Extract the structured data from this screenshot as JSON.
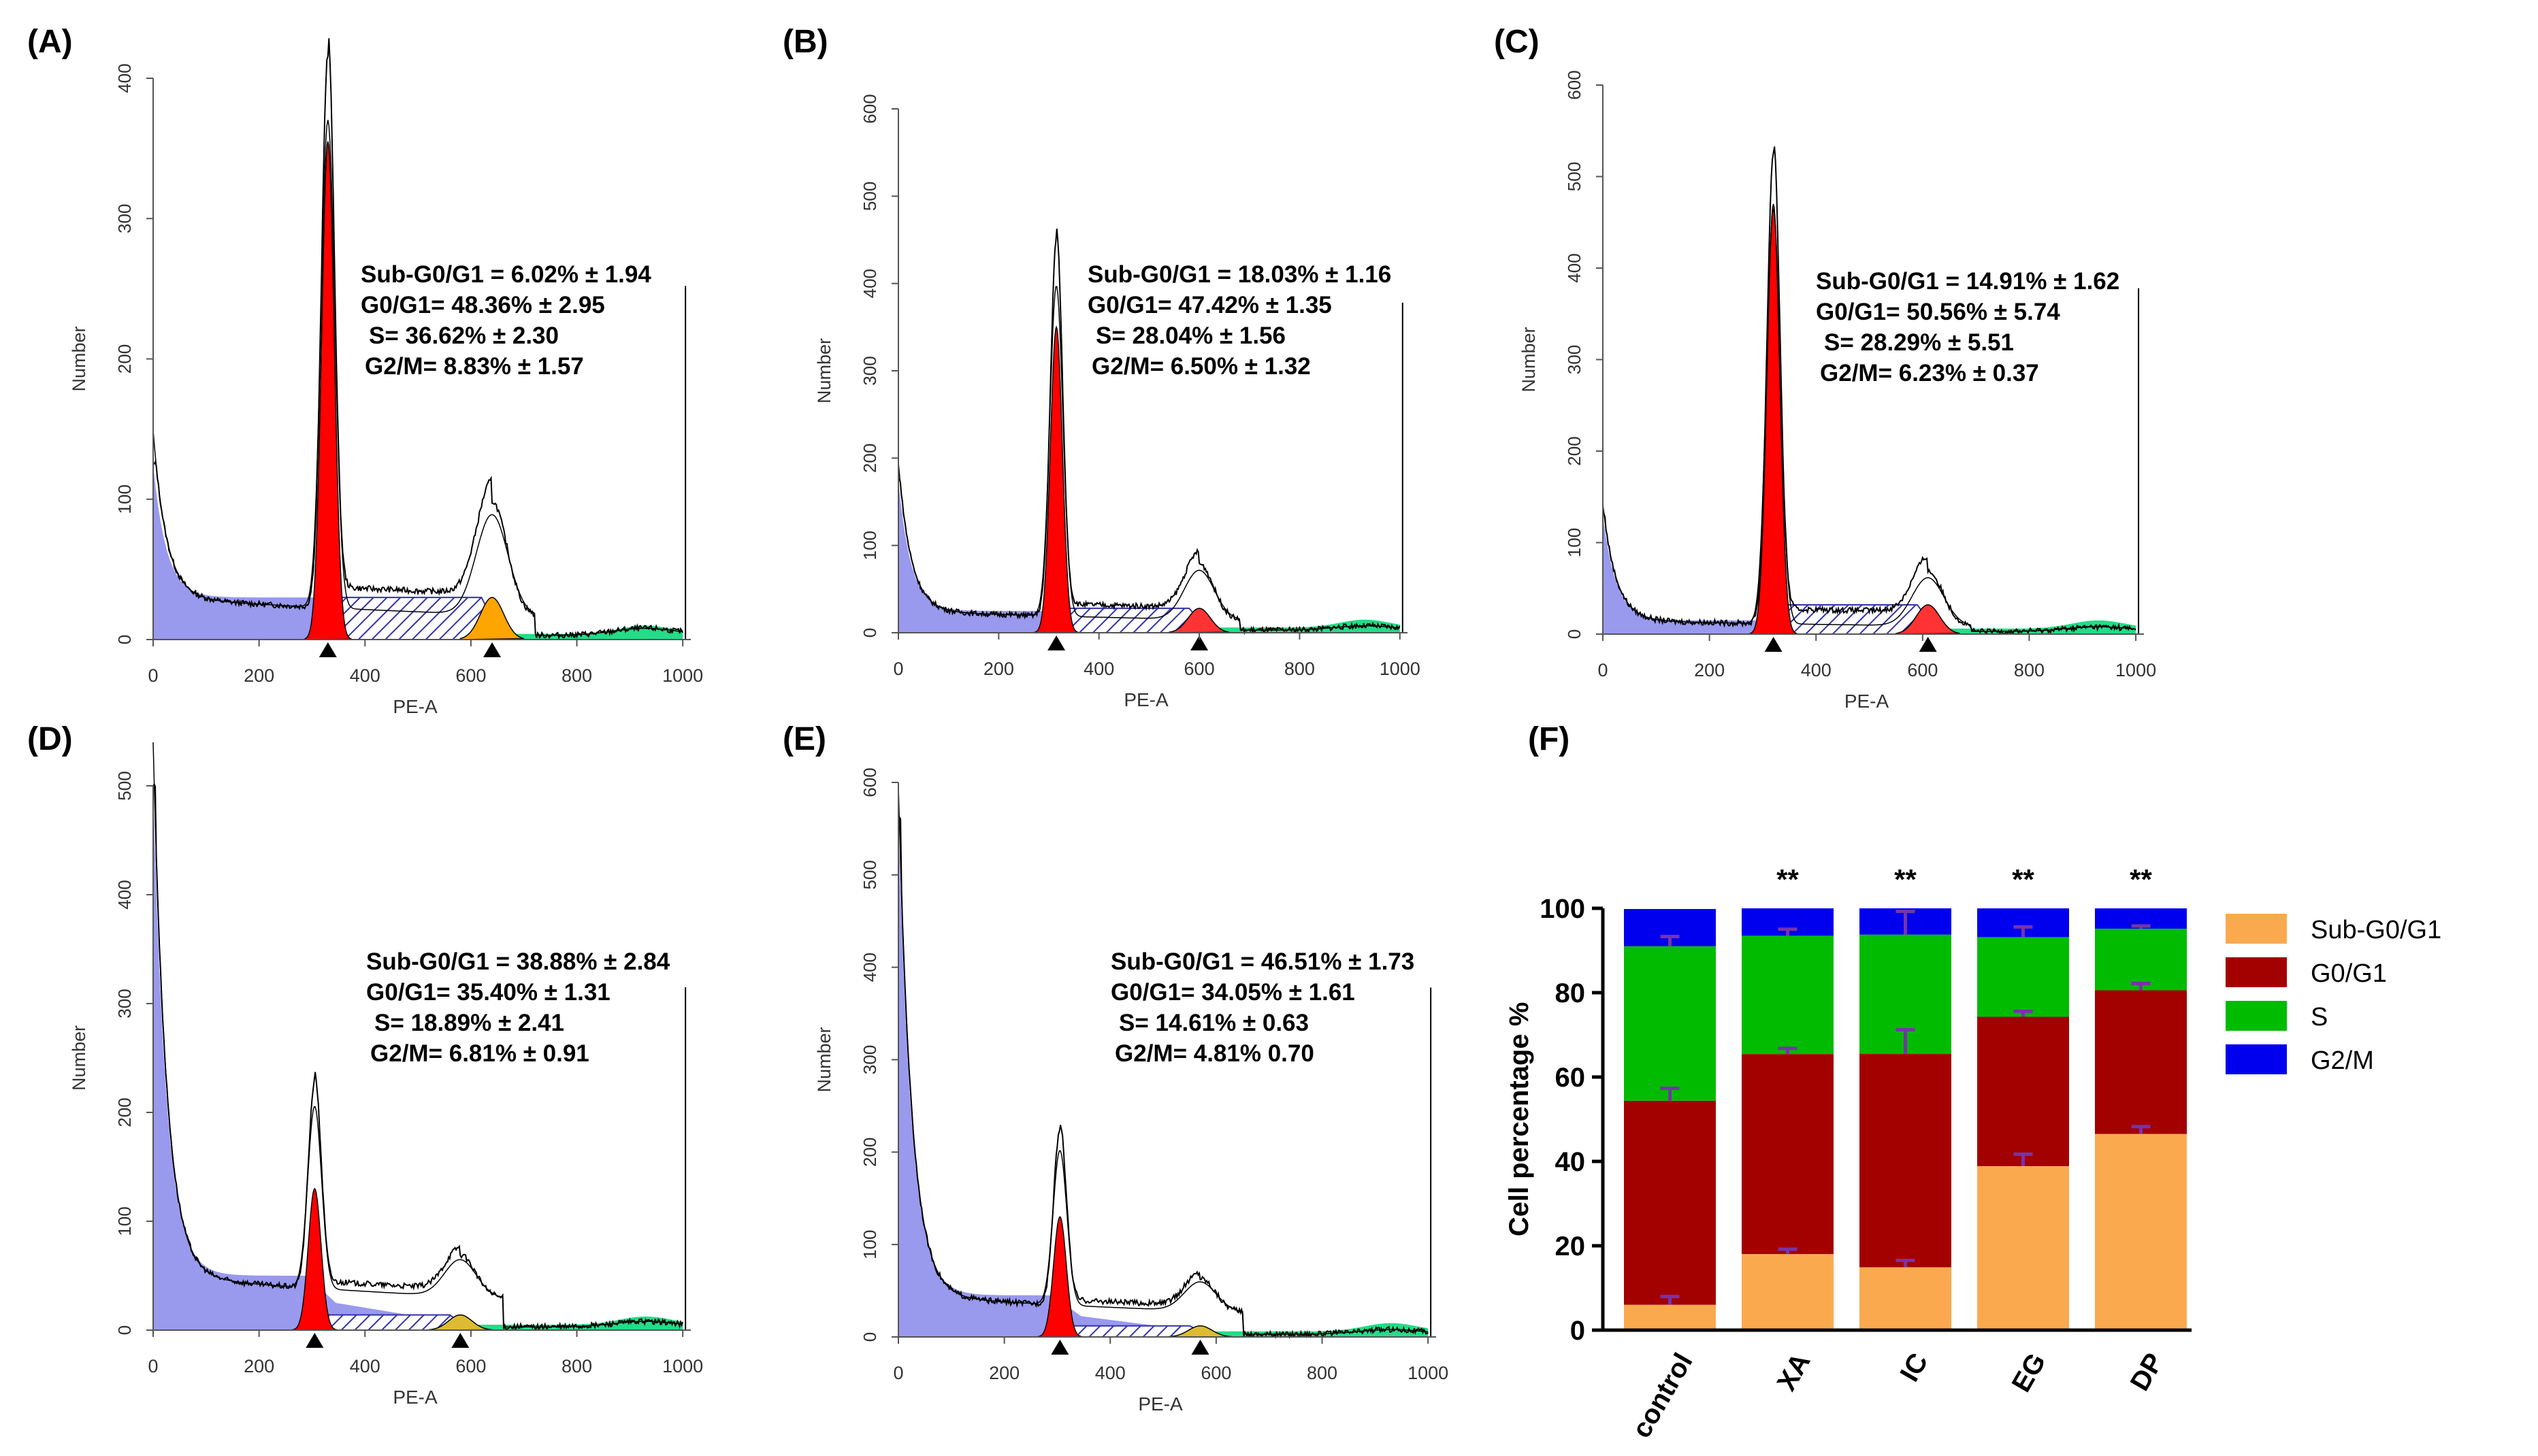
{
  "figure": {
    "colors": {
      "subg0g1_fill": "#9999ee",
      "g0g1_fill": "#ff0000",
      "s_hatch": "#3333aa",
      "g2m_fill_A": "#ffa500",
      "g2m_fill_B": "#ff3333",
      "g2m_fill_D": "#ddbb33",
      "debris_fill": "#22dd88",
      "bar_subg0g1": "#fba94f",
      "bar_g0g1": "#a30000",
      "bar_s": "#00bb00",
      "bar_g2m": "#0000ee",
      "errorbar": "#7733aa"
    },
    "panels": [
      {
        "label": "(A)",
        "xlabel": "PE-A",
        "ylabel": "Number",
        "xticks": [
          "0",
          "200",
          "400",
          "600",
          "800",
          "1000"
        ],
        "yticks": [
          "0",
          "100",
          "200",
          "300",
          "400"
        ],
        "ymax": 400,
        "stats": [
          "Sub-G0/G1  = 6.02% ± 1.94",
          "G0/G1=  48.36% ± 2.95",
          "S= 36.62% ± 2.30",
          "G2/M=  8.83% ± 1.57"
        ],
        "g1_peak": 330,
        "g1_height": 395,
        "g1_fill": 355,
        "g2_peak": 640,
        "g2_height": 95,
        "g2_fill": 30,
        "baseline": 30,
        "sub_start": 125,
        "g2_color": "g2m_fill_A"
      },
      {
        "label": "(B)",
        "xlabel": "PE-A",
        "ylabel": "Number",
        "xticks": [
          "0",
          "200",
          "400",
          "600",
          "800",
          "1000"
        ],
        "yticks": [
          "0",
          "100",
          "200",
          "300",
          "400",
          "500",
          "600"
        ],
        "ymax": 600,
        "stats": [
          "Sub-G0/G1  = 18.03% ± 1.16",
          "G0/G1=  47.42% ± 1.35",
          "S= 28.04% ± 1.56",
          "G2/M=  6.50% ± 1.32"
        ],
        "g1_peak": 315,
        "g1_height": 430,
        "g1_fill": 350,
        "g2_peak": 600,
        "g2_height": 75,
        "g2_fill": 28,
        "baseline": 25,
        "sub_start": 175,
        "g2_color": "g2m_fill_B"
      },
      {
        "label": "(C)",
        "xlabel": "PE-A",
        "ylabel": "Number",
        "xticks": [
          "0",
          "200",
          "400",
          "600",
          "800",
          "1000"
        ],
        "yticks": [
          "0",
          "100",
          "200",
          "300",
          "400",
          "500",
          "600"
        ],
        "ymax": 600,
        "stats": [
          "Sub-G0/G1  = 14.91% ± 1.62",
          "G0/G1=  50.56% ± 5.74",
          "S= 28.29% ± 5.51",
          "G2/M=  6.23% ± 0.37"
        ],
        "g1_peak": 320,
        "g1_height": 515,
        "g1_fill": 470,
        "g2_peak": 610,
        "g2_height": 70,
        "g2_fill": 32,
        "baseline": 15,
        "sub_start": 130,
        "g2_color": "g2m_fill_B"
      },
      {
        "label": "(D)",
        "xlabel": "PE-A",
        "ylabel": "Number",
        "xticks": [
          "0",
          "200",
          "400",
          "600",
          "800",
          "1000"
        ],
        "yticks": [
          "0",
          "100",
          "200",
          "300",
          "400",
          "500"
        ],
        "ymax": 500,
        "stats": [
          "Sub-G0/G1  = 38.88% ± 2.84",
          "G0/G1=  35.40% ± 1.31",
          "S= 18.89% ± 2.41",
          "G2/M=  6.81% ± 0.91"
        ],
        "g1_peak": 305,
        "g1_height": 190,
        "g1_fill": 130,
        "g2_peak": 580,
        "g2_height": 45,
        "g2_fill": 14,
        "baseline": 50,
        "sub_start": 500,
        "g2_color": "g2m_fill_D"
      },
      {
        "label": "(E)",
        "xlabel": "PE-A",
        "ylabel": "Number",
        "xticks": [
          "0",
          "200",
          "400",
          "600",
          "800",
          "1000"
        ],
        "yticks": [
          "0",
          "100",
          "200",
          "300",
          "400",
          "500",
          "600"
        ],
        "ymax": 600,
        "stats": [
          "Sub-G0/G1  = 46.51% ± 1.73",
          "G0/G1=  34.05% ± 1.61",
          "S= 14.61% ± 0.63",
          "G2/M=  4.81% 0.70"
        ],
        "g1_peak": 305,
        "g1_height": 190,
        "g1_fill": 130,
        "g2_peak": 570,
        "g2_height": 42,
        "g2_fill": 12,
        "baseline": 45,
        "sub_start": 560,
        "g2_color": "g2m_fill_D"
      }
    ]
  },
  "chart_data": [
    {
      "type": "bar",
      "stacked": true,
      "panel_label": "(F)",
      "ylabel": "Cell percentage %",
      "ylim": [
        0,
        100
      ],
      "yticks": [
        "0",
        "20",
        "40",
        "60",
        "80",
        "100"
      ],
      "categories": [
        "control",
        "XA",
        "IC",
        "EG",
        "DP"
      ],
      "significance": [
        "",
        "**",
        "**",
        "**",
        "**"
      ],
      "legend_position": "right",
      "series": [
        {
          "name": "Sub-G0/G1",
          "values": [
            6.02,
            18.03,
            14.91,
            38.88,
            46.51
          ],
          "errors": [
            1.94,
            1.16,
            1.62,
            2.84,
            1.73
          ],
          "color": "#fba94f"
        },
        {
          "name": "G0/G1",
          "values": [
            48.36,
            47.42,
            50.56,
            35.4,
            34.05
          ],
          "errors": [
            2.95,
            1.35,
            5.74,
            1.31,
            1.61
          ],
          "color": "#a30000"
        },
        {
          "name": "S",
          "values": [
            36.62,
            28.04,
            28.29,
            18.89,
            14.61
          ],
          "errors": [
            2.3,
            1.56,
            5.51,
            2.41,
            0.63
          ],
          "color": "#00bb00"
        },
        {
          "name": "G2/M",
          "values": [
            8.83,
            6.5,
            6.23,
            6.81,
            4.81
          ],
          "errors": [
            1.57,
            1.32,
            0.37,
            0.91,
            0.7
          ],
          "color": "#0000ee"
        }
      ]
    }
  ]
}
